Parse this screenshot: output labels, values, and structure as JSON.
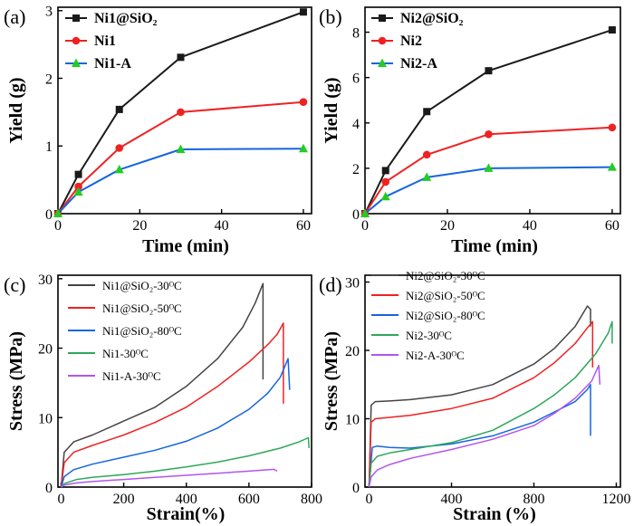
{
  "colors": {
    "black": "#1a1a1a",
    "gray": "#444444",
    "red": "#ee2222",
    "blue": "#1565e0",
    "green": "#2ea85a",
    "lightgreen": "#22cc22",
    "purple": "#b055f0"
  },
  "chart_data": [
    {
      "type": "line",
      "panel_label": "(a)",
      "xlabel": "Time (min)",
      "ylabel": "Yield (g)",
      "xlim": [
        0,
        62
      ],
      "ylim": [
        0,
        3.05
      ],
      "xticks": [
        0,
        20,
        40,
        60
      ],
      "yticks": [
        0,
        1,
        2,
        3
      ],
      "legend_position": "top-left",
      "series": [
        {
          "name": "Ni1@SiO₂",
          "color": "#1a1a1a",
          "marker": "square",
          "x": [
            0,
            5,
            15,
            30,
            60
          ],
          "y": [
            0,
            0.58,
            1.54,
            2.31,
            2.98
          ]
        },
        {
          "name": "Ni1",
          "color": "#ee2222",
          "marker": "circle",
          "x": [
            0,
            5,
            15,
            30,
            60
          ],
          "y": [
            0,
            0.4,
            0.97,
            1.5,
            1.65
          ]
        },
        {
          "name": "Ni1-A",
          "color": "#1565e0",
          "marker": "triangle",
          "marker_color": "#22cc22",
          "x": [
            0,
            5,
            15,
            30,
            60
          ],
          "y": [
            0,
            0.32,
            0.65,
            0.95,
            0.96
          ]
        }
      ]
    },
    {
      "type": "line",
      "panel_label": "(b)",
      "xlabel": "Time (min)",
      "ylabel": "Yield (g)",
      "xlim": [
        0,
        62
      ],
      "ylim": [
        0,
        9.1
      ],
      "xticks": [
        0,
        20,
        40,
        60
      ],
      "yticks": [
        0,
        2,
        4,
        6,
        8
      ],
      "legend_position": "top-left",
      "series": [
        {
          "name": "Ni2@SiO₂",
          "color": "#1a1a1a",
          "marker": "square",
          "x": [
            0,
            5,
            15,
            30,
            60
          ],
          "y": [
            0,
            1.9,
            4.5,
            6.3,
            8.1
          ]
        },
        {
          "name": "Ni2",
          "color": "#ee2222",
          "marker": "circle",
          "x": [
            0,
            5,
            15,
            30,
            60
          ],
          "y": [
            0,
            1.4,
            2.6,
            3.5,
            3.8
          ]
        },
        {
          "name": "Ni2-A",
          "color": "#1565e0",
          "marker": "triangle",
          "marker_color": "#22cc22",
          "x": [
            0,
            5,
            15,
            30,
            60
          ],
          "y": [
            0,
            0.75,
            1.6,
            2.0,
            2.05
          ]
        }
      ]
    },
    {
      "type": "line",
      "panel_label": "(c)",
      "xlabel": "Strain(%)",
      "ylabel": "Stress (MPa)",
      "xlim": [
        -10,
        800
      ],
      "ylim": [
        0,
        30.5
      ],
      "xticks": [
        0,
        200,
        400,
        600,
        800
      ],
      "yticks": [
        0,
        10,
        20,
        30
      ],
      "legend_position": "top-left",
      "series": [
        {
          "name": "Ni1@SiO₂-30ᴼC",
          "color": "#444444",
          "x": [
            0,
            10,
            40,
            100,
            200,
            300,
            400,
            500,
            580,
            620,
            645,
            645
          ],
          "y": [
            0,
            5,
            6.5,
            7.5,
            9.5,
            11.5,
            14.5,
            18.5,
            23,
            26.5,
            29.3,
            15.5
          ]
        },
        {
          "name": "Ni1@SiO₂-50ᴼC",
          "color": "#ee2222",
          "x": [
            0,
            10,
            40,
            100,
            200,
            300,
            400,
            500,
            600,
            660,
            690,
            710,
            710
          ],
          "y": [
            0,
            3.5,
            5,
            6,
            7.5,
            9.3,
            11.5,
            14.5,
            18,
            20.5,
            22,
            23.6,
            12
          ]
        },
        {
          "name": "Ni1@SiO₂-80ᴼC",
          "color": "#1565e0",
          "x": [
            0,
            10,
            40,
            100,
            200,
            300,
            400,
            500,
            600,
            660,
            700,
            725,
            730
          ],
          "y": [
            0,
            1.5,
            2.5,
            3.3,
            4.3,
            5.3,
            6.6,
            8.5,
            11.2,
            13.5,
            15.8,
            18.5,
            14
          ]
        },
        {
          "name": "Ni1-30ᴼC",
          "color": "#2ea85a",
          "x": [
            0,
            10,
            50,
            100,
            200,
            300,
            400,
            500,
            600,
            700,
            760,
            790,
            792
          ],
          "y": [
            0,
            0.5,
            1.1,
            1.4,
            1.8,
            2.3,
            2.9,
            3.6,
            4.5,
            5.6,
            6.5,
            7.1,
            5.6
          ]
        },
        {
          "name": "Ni1-A-30ᴼC",
          "color": "#b055f0",
          "x": [
            0,
            10,
            50,
            100,
            200,
            300,
            400,
            500,
            600,
            680,
            690
          ],
          "y": [
            0,
            0.3,
            0.6,
            0.8,
            1.1,
            1.4,
            1.7,
            2.0,
            2.3,
            2.55,
            2.3
          ]
        }
      ]
    },
    {
      "type": "line",
      "panel_label": "(d)",
      "xlabel": "Strain (%)",
      "ylabel": "Stress (MPa)",
      "xlim": [
        -20,
        1220
      ],
      "ylim": [
        0,
        31
      ],
      "xticks": [
        0,
        400,
        800,
        1200
      ],
      "yticks": [
        0,
        10,
        20,
        30
      ],
      "legend_position": "top-left",
      "series": [
        {
          "name": "Ni2@SiO₂-30ᴼC",
          "color": "#444444",
          "x": [
            0,
            10,
            30,
            100,
            200,
            400,
            600,
            800,
            900,
            1000,
            1060,
            1075,
            1075
          ],
          "y": [
            0,
            12,
            12.5,
            12.6,
            12.8,
            13.5,
            15,
            18,
            20.3,
            23.5,
            26.5,
            26,
            23.5
          ]
        },
        {
          "name": "Ni2@SiO₂-50ᴼC",
          "color": "#ee2222",
          "x": [
            0,
            10,
            30,
            100,
            200,
            400,
            600,
            800,
            900,
            1000,
            1060,
            1085,
            1085
          ],
          "y": [
            0,
            9.5,
            10,
            10.2,
            10.5,
            11.5,
            13,
            16,
            18.2,
            21,
            23.3,
            24.2,
            17.5
          ]
        },
        {
          "name": "Ni2@SiO₂-80ᴼC",
          "color": "#1565e0",
          "x": [
            0,
            15,
            40,
            100,
            200,
            400,
            600,
            800,
            900,
            1000,
            1060,
            1075,
            1075
          ],
          "y": [
            0,
            5.8,
            6,
            5.8,
            5.7,
            6.3,
            7.5,
            9.5,
            11,
            12.5,
            14.3,
            15,
            7.5
          ]
        },
        {
          "name": "Ni2-30ᴼC",
          "color": "#2ea85a",
          "x": [
            0,
            10,
            40,
            100,
            200,
            400,
            600,
            800,
            900,
            1000,
            1100,
            1160,
            1180,
            1180
          ],
          "y": [
            0,
            3.5,
            4.5,
            5,
            5.5,
            6.5,
            8.3,
            11.5,
            13.5,
            16,
            19.5,
            22.5,
            24.2,
            21
          ]
        },
        {
          "name": "Ni2-A-30ᴼC",
          "color": "#b055f0",
          "x": [
            0,
            10,
            40,
            100,
            200,
            400,
            600,
            800,
            900,
            1000,
            1080,
            1115,
            1120
          ],
          "y": [
            0,
            1.5,
            2.5,
            3.3,
            4.2,
            5.5,
            7,
            9,
            10.8,
            13,
            15.5,
            17.8,
            15
          ]
        }
      ]
    }
  ]
}
